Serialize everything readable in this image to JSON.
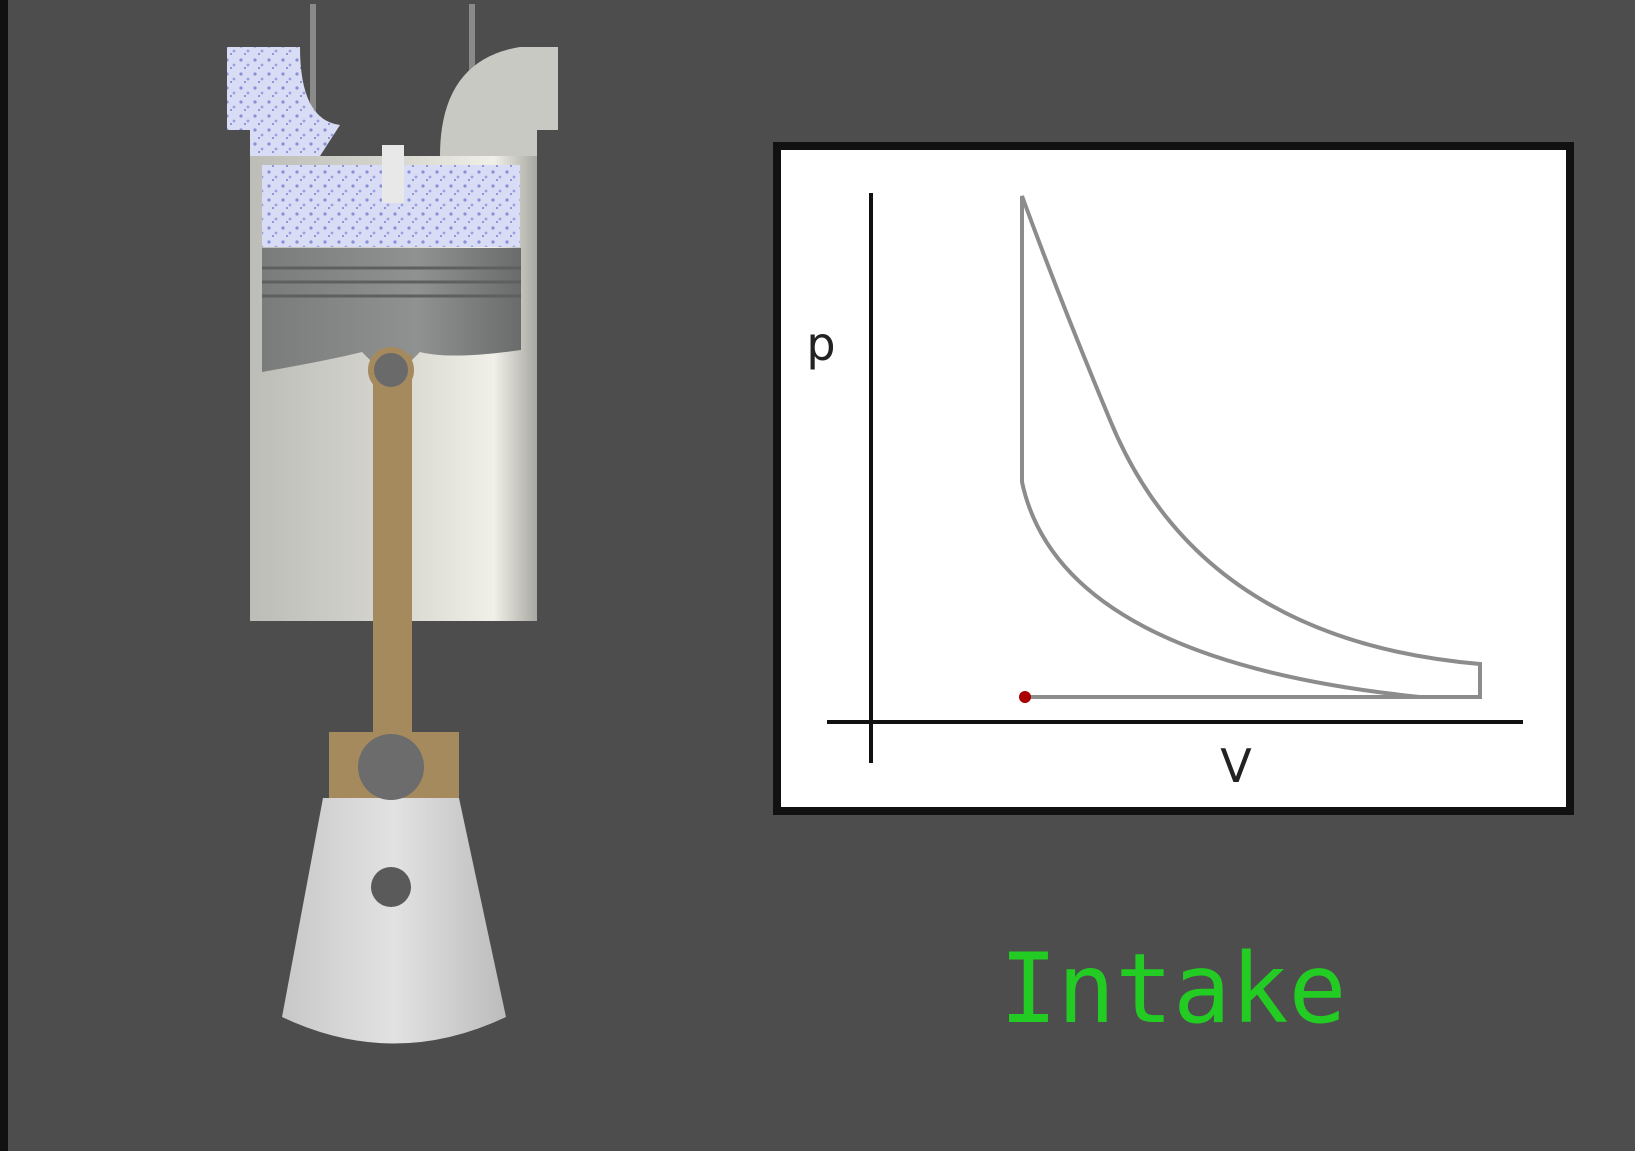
{
  "diagram": {
    "y_label": "p",
    "x_label": "V",
    "stage": "Intake"
  }
}
